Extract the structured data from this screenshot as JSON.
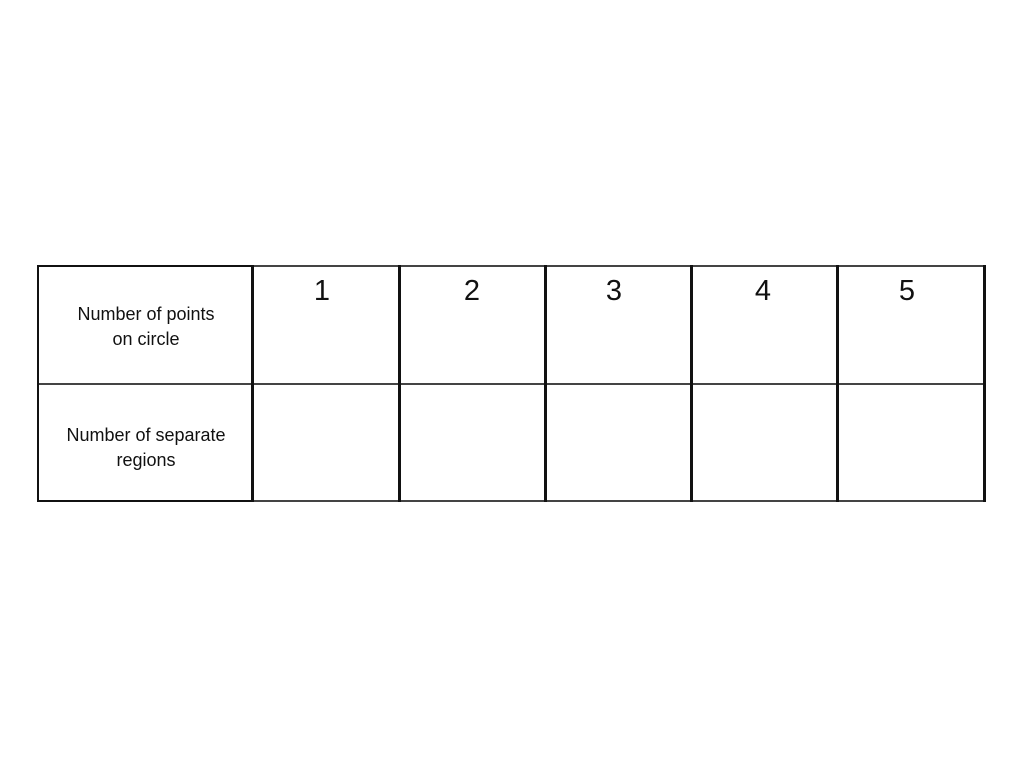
{
  "table": {
    "row_headers": [
      "Number of points on circle",
      "Number of separate regions"
    ],
    "row_header_lines": [
      [
        "Number of points",
        "on circle"
      ],
      [
        "Number of separate",
        "regions"
      ]
    ],
    "columns": [
      "1",
      "2",
      "3",
      "4",
      "5"
    ],
    "regions_values": [
      "",
      "",
      "",
      "",
      ""
    ]
  }
}
